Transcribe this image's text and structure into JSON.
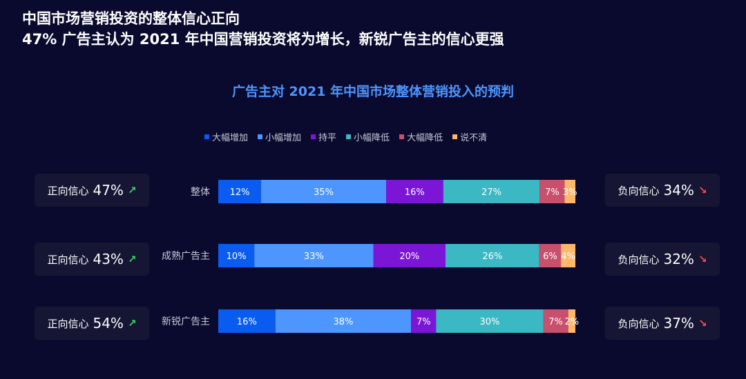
{
  "headline": {
    "line1": "中国市场营销投资的整体信心正向",
    "line2": "47% 广告主认为 2021 年中国营销投资将为增长，新锐广告主的信心更强"
  },
  "chart_data": {
    "type": "bar",
    "stacked": true,
    "orientation": "horizontal",
    "percent": true,
    "title": "广告主对 2021 年中国市场整体营销投入的预判",
    "legend_position": "top",
    "categories": [
      "整体",
      "成熟广告主",
      "新锐广告主"
    ],
    "series": [
      {
        "name": "大幅增加",
        "color": "#0a5cf0",
        "values": [
          12,
          10,
          16
        ],
        "labels": [
          "12%",
          "10%",
          "16%"
        ]
      },
      {
        "name": "小幅增加",
        "color": "#4d96ff",
        "values": [
          35,
          33,
          38
        ],
        "labels": [
          "35%",
          "33%",
          "38%"
        ]
      },
      {
        "name": "持平",
        "color": "#7b16d6",
        "values": [
          16,
          20,
          7
        ],
        "labels": [
          "16%",
          "20%",
          "7%"
        ]
      },
      {
        "name": "小幅降低",
        "color": "#3bb8c4",
        "values": [
          27,
          26,
          30
        ],
        "labels": [
          "27%",
          "26%",
          "30%"
        ]
      },
      {
        "name": "大幅降低",
        "color": "#c8506c",
        "values": [
          7,
          6,
          7
        ],
        "labels": [
          "7%",
          "6%",
          "7%"
        ]
      },
      {
        "name": "说不清",
        "color": "#ffb86b",
        "values": [
          3,
          4,
          2
        ],
        "labels": [
          "3%",
          "4%",
          "2%"
        ]
      }
    ]
  },
  "confidence": {
    "positive_label": "正向信心",
    "negative_label": "负向信心",
    "positive": [
      "47%",
      "43%",
      "54%"
    ],
    "negative": [
      "34%",
      "32%",
      "37%"
    ],
    "up_arrow": "↗",
    "down_arrow": "↘"
  },
  "icons": {
    "up": "arrow-up-right-icon",
    "down": "arrow-down-right-icon"
  }
}
